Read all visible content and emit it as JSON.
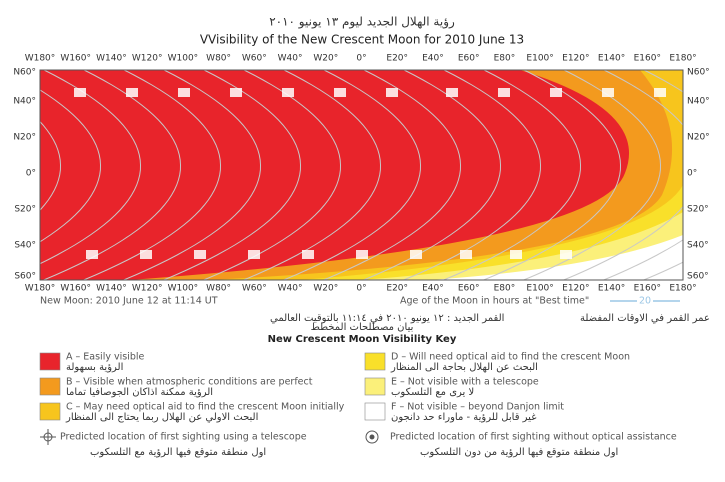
{
  "header": {
    "arabic_title": "رؤية الهلال الجديد ليوم ١٣ يونيو ٢٠١٠",
    "title": "VVisibility of the New Crescent Moon for 2010 June 13"
  },
  "map": {
    "lon_labels": [
      "W180°",
      "W160°",
      "W140°",
      "W120°",
      "W100°",
      "W80°",
      "W60°",
      "W40°",
      "W20°",
      "0°",
      "E20°",
      "E40°",
      "E60°",
      "E80°",
      "E100°",
      "E120°",
      "E140°",
      "E160°",
      "E180°"
    ],
    "lat_labels": [
      "N60°",
      "N40°",
      "N20°",
      "0°",
      "S20°",
      "S40°",
      "S60°"
    ]
  },
  "footer": {
    "new_moon": "New Moon: 2010 June 12 at 11:14 UT",
    "new_moon_ar": "القمر الجديد : ١٢ يونيو ٢٠١٠ في ١١:١٤ بالتوقيت العالمي",
    "age_label": "Age of the Moon in hours at \"Best time\"",
    "age_sample": "20",
    "age_label_ar": "عمر القمر في الاوقات المفضلة"
  },
  "key": {
    "heading_ar": "بيان مصطلحات المخطط",
    "heading": "New Crescent Moon Visibility Key",
    "items": [
      {
        "text": "A – Easily visible",
        "text_ar": "الرؤية بسهولة",
        "color": "#e8242b"
      },
      {
        "text": "B – Visible when atmospheric conditions are perfect",
        "text_ar": "الرؤية ممكنة اذاكان الجوصافيا تماما",
        "color": "#f39a1e"
      },
      {
        "text": "C – May need optical aid to find the crescent Moon initially",
        "text_ar": "البحث الاولي عن الهلال ربما يحتاج الى المنظار",
        "color": "#f7c51d"
      },
      {
        "text": "D – Will need optical aid to find the crescent Moon",
        "text_ar": "البحث عن الهلال بحاجة الى المنظار",
        "color": "#f9e02a"
      },
      {
        "text": "E – Not visible with a telescope",
        "text_ar": "لا يرى مع التلسكوب",
        "color": "#fbf07a"
      },
      {
        "text": "F – Not visible – beyond Danjon limit",
        "text_ar": "غير قابل للرؤية - ماوراء حد دانجون",
        "color": "#ffffff"
      }
    ],
    "symbols": [
      {
        "text": "Predicted location of first sighting using a telescope",
        "text_ar": "اول منطقة متوقع فيها الرؤية مع التلسكوب"
      },
      {
        "text": "Predicted location of first sighting without optical assistance",
        "text_ar": "اول منطقة متوقع فيها الرؤية من دون التلسكوب"
      }
    ]
  }
}
